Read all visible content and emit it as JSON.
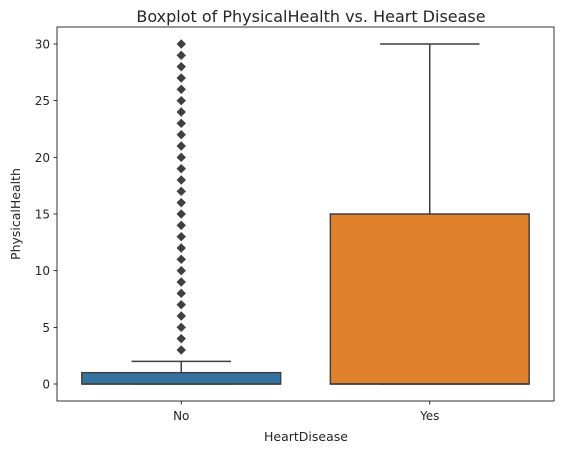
{
  "chart_data": {
    "type": "box",
    "title": "Boxplot of PhysicalHealth vs. Heart Disease",
    "xlabel": "HeartDisease",
    "ylabel": "PhysicalHealth",
    "categories": [
      "No",
      "Yes"
    ],
    "ylim": [
      -1.5,
      31.5
    ],
    "yticks": [
      0,
      5,
      10,
      15,
      20,
      25,
      30
    ],
    "grid": false,
    "boxes": [
      {
        "category": "No",
        "color": "#3274a1",
        "q1": 0,
        "median": 0,
        "q3": 1,
        "whisker_low": 0,
        "whisker_high": 2,
        "outliers": [
          3,
          4,
          5,
          6,
          7,
          8,
          9,
          10,
          11,
          12,
          13,
          14,
          15,
          16,
          17,
          18,
          19,
          20,
          21,
          22,
          23,
          24,
          25,
          26,
          27,
          28,
          29,
          30
        ]
      },
      {
        "category": "Yes",
        "color": "#e1812c",
        "q1": 0,
        "median": 0,
        "q3": 15,
        "whisker_low": 0,
        "whisker_high": 30,
        "outliers": []
      }
    ]
  }
}
